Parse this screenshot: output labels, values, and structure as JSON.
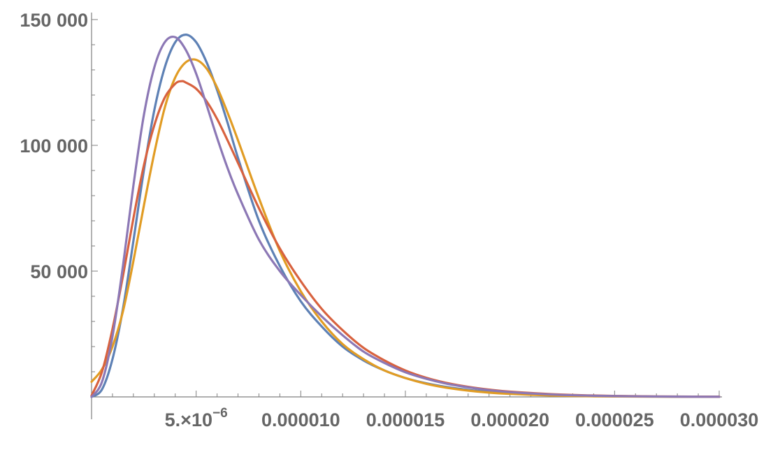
{
  "chart_data": {
    "type": "line",
    "title": "",
    "xlabel": "",
    "ylabel": "",
    "xlim": [
      0,
      3e-05
    ],
    "ylim": [
      0,
      150000
    ],
    "grid": false,
    "x_ticks": [
      {
        "value": 5e-06,
        "label": "5.×10",
        "superscript": "−6"
      },
      {
        "value": 1e-05,
        "label": "0.000010"
      },
      {
        "value": 1.5e-05,
        "label": "0.000015"
      },
      {
        "value": 2e-05,
        "label": "0.000020"
      },
      {
        "value": 2.5e-05,
        "label": "0.000025"
      },
      {
        "value": 3e-05,
        "label": "0.000030"
      }
    ],
    "y_ticks": [
      {
        "value": 50000,
        "label": "50 000"
      },
      {
        "value": 100000,
        "label": "100 000"
      },
      {
        "value": 150000,
        "label": "150 000"
      }
    ],
    "series": [
      {
        "color": "#5e81b5",
        "points": [
          [
            0,
            0
          ],
          [
            5e-07,
            3000
          ],
          [
            1e-06,
            15000
          ],
          [
            1.5e-06,
            35000
          ],
          [
            2e-06,
            62000
          ],
          [
            2.5e-06,
            90000
          ],
          [
            3e-06,
            114000
          ],
          [
            3.5e-06,
            131000
          ],
          [
            4e-06,
            141000
          ],
          [
            4.5e-06,
            144000
          ],
          [
            5e-06,
            141000
          ],
          [
            5.5e-06,
            133000
          ],
          [
            6e-06,
            122000
          ],
          [
            6.5e-06,
            109000
          ],
          [
            7e-06,
            95000
          ],
          [
            8e-06,
            70000
          ],
          [
            9e-06,
            52000
          ],
          [
            1e-05,
            38000
          ],
          [
            1.1e-05,
            28000
          ],
          [
            1.2e-05,
            20000
          ],
          [
            1.3e-05,
            14500
          ],
          [
            1.4e-05,
            10500
          ],
          [
            1.5e-05,
            7500
          ],
          [
            1.6e-05,
            5400
          ],
          [
            1.7e-05,
            3900
          ],
          [
            1.8e-05,
            2800
          ],
          [
            1.9e-05,
            2000
          ],
          [
            2e-05,
            1400
          ],
          [
            2.2e-05,
            700
          ],
          [
            2.4e-05,
            350
          ],
          [
            2.6e-05,
            170
          ],
          [
            2.8e-05,
            80
          ],
          [
            3e-05,
            40
          ]
        ]
      },
      {
        "color": "#e19c24",
        "points": [
          [
            0,
            6000
          ],
          [
            5e-07,
            11000
          ],
          [
            1e-06,
            20000
          ],
          [
            1.5e-06,
            34000
          ],
          [
            2e-06,
            54000
          ],
          [
            2.5e-06,
            76000
          ],
          [
            3e-06,
            97000
          ],
          [
            3.5e-06,
            115000
          ],
          [
            4e-06,
            127000
          ],
          [
            4.5e-06,
            133000
          ],
          [
            5e-06,
            134000
          ],
          [
            5.5e-06,
            130500
          ],
          [
            6e-06,
            123000
          ],
          [
            6.5e-06,
            113000
          ],
          [
            7e-06,
            102000
          ],
          [
            8e-06,
            79000
          ],
          [
            9e-06,
            58000
          ],
          [
            1e-05,
            42000
          ],
          [
            1.1e-05,
            30000
          ],
          [
            1.2e-05,
            21000
          ],
          [
            1.3e-05,
            15000
          ],
          [
            1.4e-05,
            10500
          ],
          [
            1.5e-05,
            7500
          ],
          [
            1.6e-05,
            5200
          ],
          [
            1.7e-05,
            3600
          ],
          [
            1.8e-05,
            2500
          ],
          [
            1.9e-05,
            1700
          ],
          [
            2e-05,
            1200
          ],
          [
            2.2e-05,
            550
          ],
          [
            2.4e-05,
            250
          ],
          [
            2.6e-05,
            120
          ],
          [
            2.8e-05,
            55
          ],
          [
            3e-05,
            25
          ]
        ]
      },
      {
        "color": "#d8623f",
        "points": [
          [
            0,
            500
          ],
          [
            5e-07,
            10000
          ],
          [
            1e-06,
            27000
          ],
          [
            1.5e-06,
            48000
          ],
          [
            2e-06,
            71000
          ],
          [
            2.5e-06,
            92000
          ],
          [
            3e-06,
            108000
          ],
          [
            3.5e-06,
            119000
          ],
          [
            4e-06,
            124500
          ],
          [
            4.3e-06,
            125500
          ],
          [
            4.5e-06,
            125000
          ],
          [
            5e-06,
            122500
          ],
          [
            5.5e-06,
            117500
          ],
          [
            6e-06,
            110500
          ],
          [
            6.5e-06,
            102000
          ],
          [
            7e-06,
            93000
          ],
          [
            8e-06,
            75000
          ],
          [
            9e-06,
            59000
          ],
          [
            1e-05,
            46000
          ],
          [
            1.1e-05,
            35000
          ],
          [
            1.2e-05,
            26500
          ],
          [
            1.3e-05,
            19500
          ],
          [
            1.4e-05,
            14500
          ],
          [
            1.5e-05,
            10500
          ],
          [
            1.6e-05,
            7600
          ],
          [
            1.7e-05,
            5500
          ],
          [
            1.8e-05,
            4000
          ],
          [
            1.9e-05,
            2900
          ],
          [
            2e-05,
            2100
          ],
          [
            2.2e-05,
            1100
          ],
          [
            2.4e-05,
            550
          ],
          [
            2.6e-05,
            270
          ],
          [
            2.8e-05,
            130
          ],
          [
            3e-05,
            60
          ]
        ]
      },
      {
        "color": "#8c78b5",
        "points": [
          [
            0,
            0
          ],
          [
            5e-07,
            6000
          ],
          [
            1e-06,
            24000
          ],
          [
            1.5e-06,
            52000
          ],
          [
            2e-06,
            84000
          ],
          [
            2.5e-06,
            112000
          ],
          [
            3e-06,
            131000
          ],
          [
            3.5e-06,
            141000
          ],
          [
            4e-06,
            143000
          ],
          [
            4.5e-06,
            138000
          ],
          [
            5e-06,
            128500
          ],
          [
            5.5e-06,
            116000
          ],
          [
            6e-06,
            103000
          ],
          [
            6.5e-06,
            91000
          ],
          [
            7e-06,
            80500
          ],
          [
            8e-06,
            62500
          ],
          [
            9e-06,
            50000
          ],
          [
            1e-05,
            40500
          ],
          [
            1.1e-05,
            32000
          ],
          [
            1.2e-05,
            24500
          ],
          [
            1.3e-05,
            18000
          ],
          [
            1.4e-05,
            13500
          ],
          [
            1.5e-05,
            9800
          ],
          [
            1.6e-05,
            7200
          ],
          [
            1.7e-05,
            5200
          ],
          [
            1.8e-05,
            3800
          ],
          [
            1.9e-05,
            2700
          ],
          [
            2e-05,
            1900
          ],
          [
            2.2e-05,
            950
          ],
          [
            2.4e-05,
            460
          ],
          [
            2.6e-05,
            220
          ],
          [
            2.8e-05,
            100
          ],
          [
            3e-05,
            50
          ]
        ]
      }
    ]
  }
}
